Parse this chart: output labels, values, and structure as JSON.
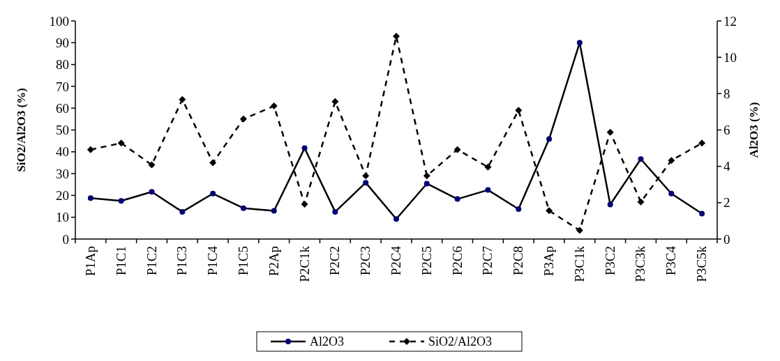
{
  "chart_data": {
    "type": "line",
    "ylabel": "SiO2/Al2O3 (%)",
    "y2label": "Al2O3 (%)",
    "categories": [
      "P1Ap",
      "P1C1",
      "P1C2",
      "P1C3",
      "P1C4",
      "P1C5",
      "P2Ap",
      "P2C1k",
      "P2C2",
      "P2C3",
      "P2C4",
      "P2C5",
      "P2C6",
      "P2C7",
      "P2C8",
      "P3Ap",
      "P3C1k",
      "P3C2",
      "P3C3k",
      "P3C4",
      "P3C5k"
    ],
    "series": [
      {
        "name": "Al2O3",
        "color": "#000000",
        "axis": "y2",
        "marker": "circle",
        "line_style": "solid",
        "values": [
          2.25,
          2.1,
          2.6,
          1.5,
          2.5,
          1.7,
          1.55,
          5.0,
          1.5,
          3.1,
          1.1,
          3.05,
          2.2,
          2.7,
          1.65,
          5.5,
          10.8,
          1.9,
          4.4,
          2.5,
          1.4
        ]
      },
      {
        "name": "SiO2/Al2O3",
        "color": "#000000",
        "marker": "diamond",
        "line_style": "dashed",
        "values": [
          41,
          44,
          34,
          64,
          35,
          55,
          61,
          16,
          63,
          29,
          93,
          29,
          41,
          33,
          59,
          13,
          4,
          49,
          17,
          36,
          44
        ]
      }
    ],
    "ylim": [
      0,
      100
    ],
    "yticks": [
      0,
      10,
      20,
      30,
      40,
      50,
      60,
      70,
      80,
      90,
      100
    ],
    "y2lim": [
      0,
      12
    ],
    "y2ticks": [
      0,
      2,
      4,
      6,
      8,
      10,
      12
    ],
    "grid": false,
    "legend": "bottom"
  }
}
